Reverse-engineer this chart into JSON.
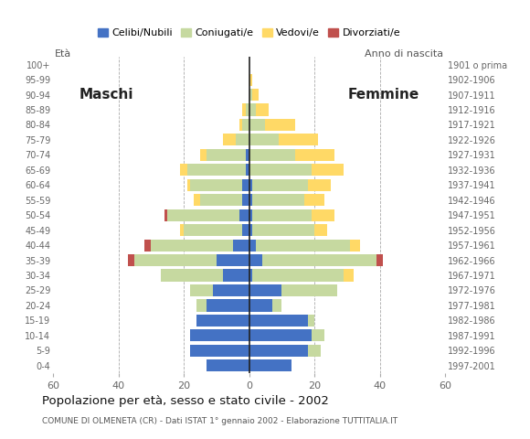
{
  "age_groups": [
    "0-4",
    "5-9",
    "10-14",
    "15-19",
    "20-24",
    "25-29",
    "30-34",
    "35-39",
    "40-44",
    "45-49",
    "50-54",
    "55-59",
    "60-64",
    "65-69",
    "70-74",
    "75-79",
    "80-84",
    "85-89",
    "90-94",
    "95-99",
    "100+"
  ],
  "birth_years": [
    "1997-2001",
    "1992-1996",
    "1987-1991",
    "1982-1986",
    "1977-1981",
    "1972-1976",
    "1967-1971",
    "1962-1966",
    "1957-1961",
    "1952-1956",
    "1947-1951",
    "1942-1946",
    "1937-1941",
    "1932-1936",
    "1927-1931",
    "1922-1926",
    "1917-1921",
    "1912-1916",
    "1907-1911",
    "1902-1906",
    "1901 o prima"
  ],
  "males": {
    "celibi": [
      13,
      18,
      18,
      16,
      13,
      11,
      8,
      10,
      5,
      2,
      3,
      2,
      2,
      1,
      1,
      0,
      0,
      0,
      0,
      0,
      0
    ],
    "coniugati": [
      0,
      0,
      0,
      0,
      3,
      7,
      19,
      25,
      25,
      18,
      22,
      13,
      16,
      18,
      12,
      4,
      2,
      1,
      0,
      0,
      0
    ],
    "vedovi": [
      0,
      0,
      0,
      0,
      0,
      0,
      0,
      0,
      0,
      1,
      0,
      2,
      1,
      2,
      2,
      4,
      1,
      1,
      0,
      0,
      0
    ],
    "divorziati": [
      0,
      0,
      0,
      0,
      0,
      0,
      0,
      2,
      2,
      0,
      1,
      0,
      0,
      0,
      0,
      0,
      0,
      0,
      0,
      0,
      0
    ]
  },
  "females": {
    "nubili": [
      13,
      18,
      19,
      18,
      7,
      10,
      1,
      4,
      2,
      1,
      1,
      1,
      1,
      0,
      0,
      0,
      0,
      0,
      0,
      0,
      0
    ],
    "coniugate": [
      0,
      4,
      4,
      2,
      3,
      17,
      28,
      35,
      29,
      19,
      18,
      16,
      17,
      19,
      14,
      9,
      5,
      2,
      1,
      0,
      0
    ],
    "vedove": [
      0,
      0,
      0,
      0,
      0,
      0,
      3,
      0,
      3,
      4,
      7,
      6,
      7,
      10,
      12,
      12,
      9,
      4,
      2,
      1,
      0
    ],
    "divorziate": [
      0,
      0,
      0,
      0,
      0,
      0,
      0,
      2,
      0,
      0,
      0,
      0,
      0,
      0,
      0,
      0,
      0,
      0,
      0,
      0,
      0
    ]
  },
  "color_celibi": "#4472c4",
  "color_coniugati": "#c6d9a0",
  "color_vedovi": "#ffd966",
  "color_divorziati": "#c0504d",
  "title": "Popolazione per età, sesso e stato civile - 2002",
  "subtitle": "COMUNE DI OLMENETA (CR) - Dati ISTAT 1° gennaio 2002 - Elaborazione TUTTITALIA.IT",
  "label_eta": "Età",
  "label_anno": "Anno di nascita",
  "label_maschi": "Maschi",
  "label_femmine": "Femmine",
  "legend_labels": [
    "Celibi/Nubili",
    "Coniugati/e",
    "Vedovi/e",
    "Divorziati/e"
  ],
  "xlim": 60,
  "bg_color": "#ffffff",
  "grid_color": "#aaaaaa"
}
